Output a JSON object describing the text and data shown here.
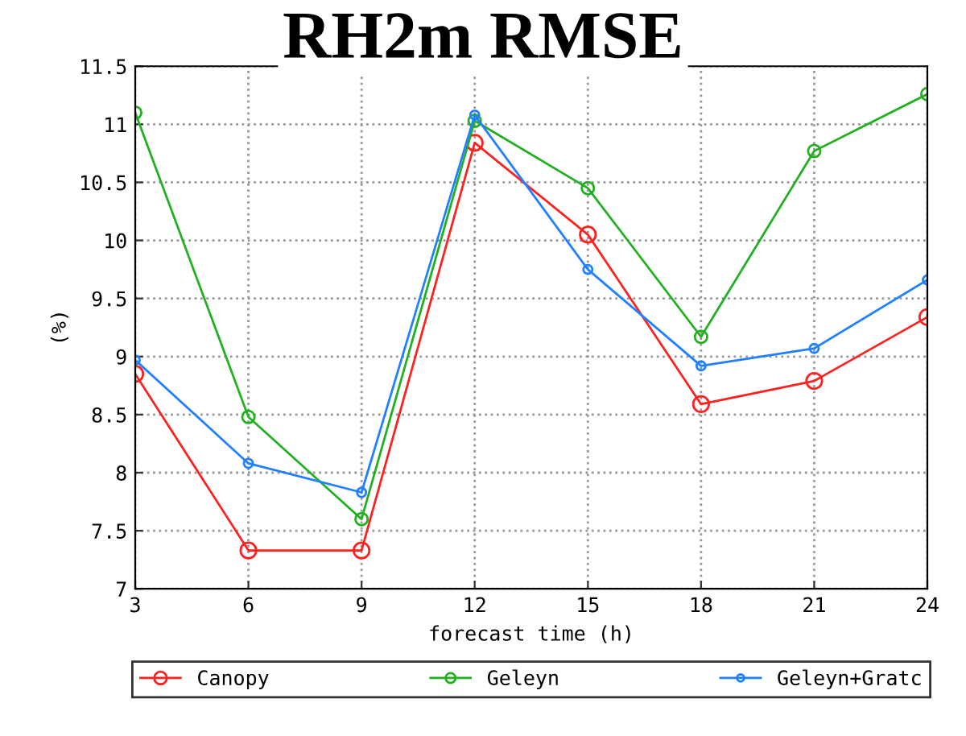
{
  "chart_data": {
    "type": "line",
    "title": "RH2m RMSE",
    "xlabel": "forecast time (h)",
    "ylabel": "(%)",
    "x": [
      3,
      6,
      9,
      12,
      15,
      18,
      21,
      24
    ],
    "series": [
      {
        "name": "Canopy",
        "color": "#ff2020",
        "values": [
          8.85,
          7.33,
          7.33,
          10.84,
          10.05,
          8.59,
          8.79,
          9.34
        ]
      },
      {
        "name": "Geleyn",
        "color": "#20b020",
        "values": [
          11.1,
          8.48,
          7.6,
          11.03,
          10.45,
          9.17,
          10.77,
          11.26
        ]
      },
      {
        "name": "Geleyn+Gratc",
        "color": "#2080ff",
        "values": [
          8.97,
          8.08,
          7.83,
          11.08,
          9.75,
          8.92,
          9.07,
          9.66
        ]
      }
    ],
    "xlim": [
      3,
      24
    ],
    "xticks": [
      3,
      6,
      9,
      12,
      15,
      18,
      21,
      24
    ],
    "ylim": [
      7,
      11.5
    ],
    "yticks": [
      7,
      7.5,
      8,
      8.5,
      9,
      9.5,
      10,
      10.5,
      11,
      11.5
    ],
    "grid": true,
    "legend": "bottom",
    "marker": "circle",
    "line_style": "solid"
  }
}
